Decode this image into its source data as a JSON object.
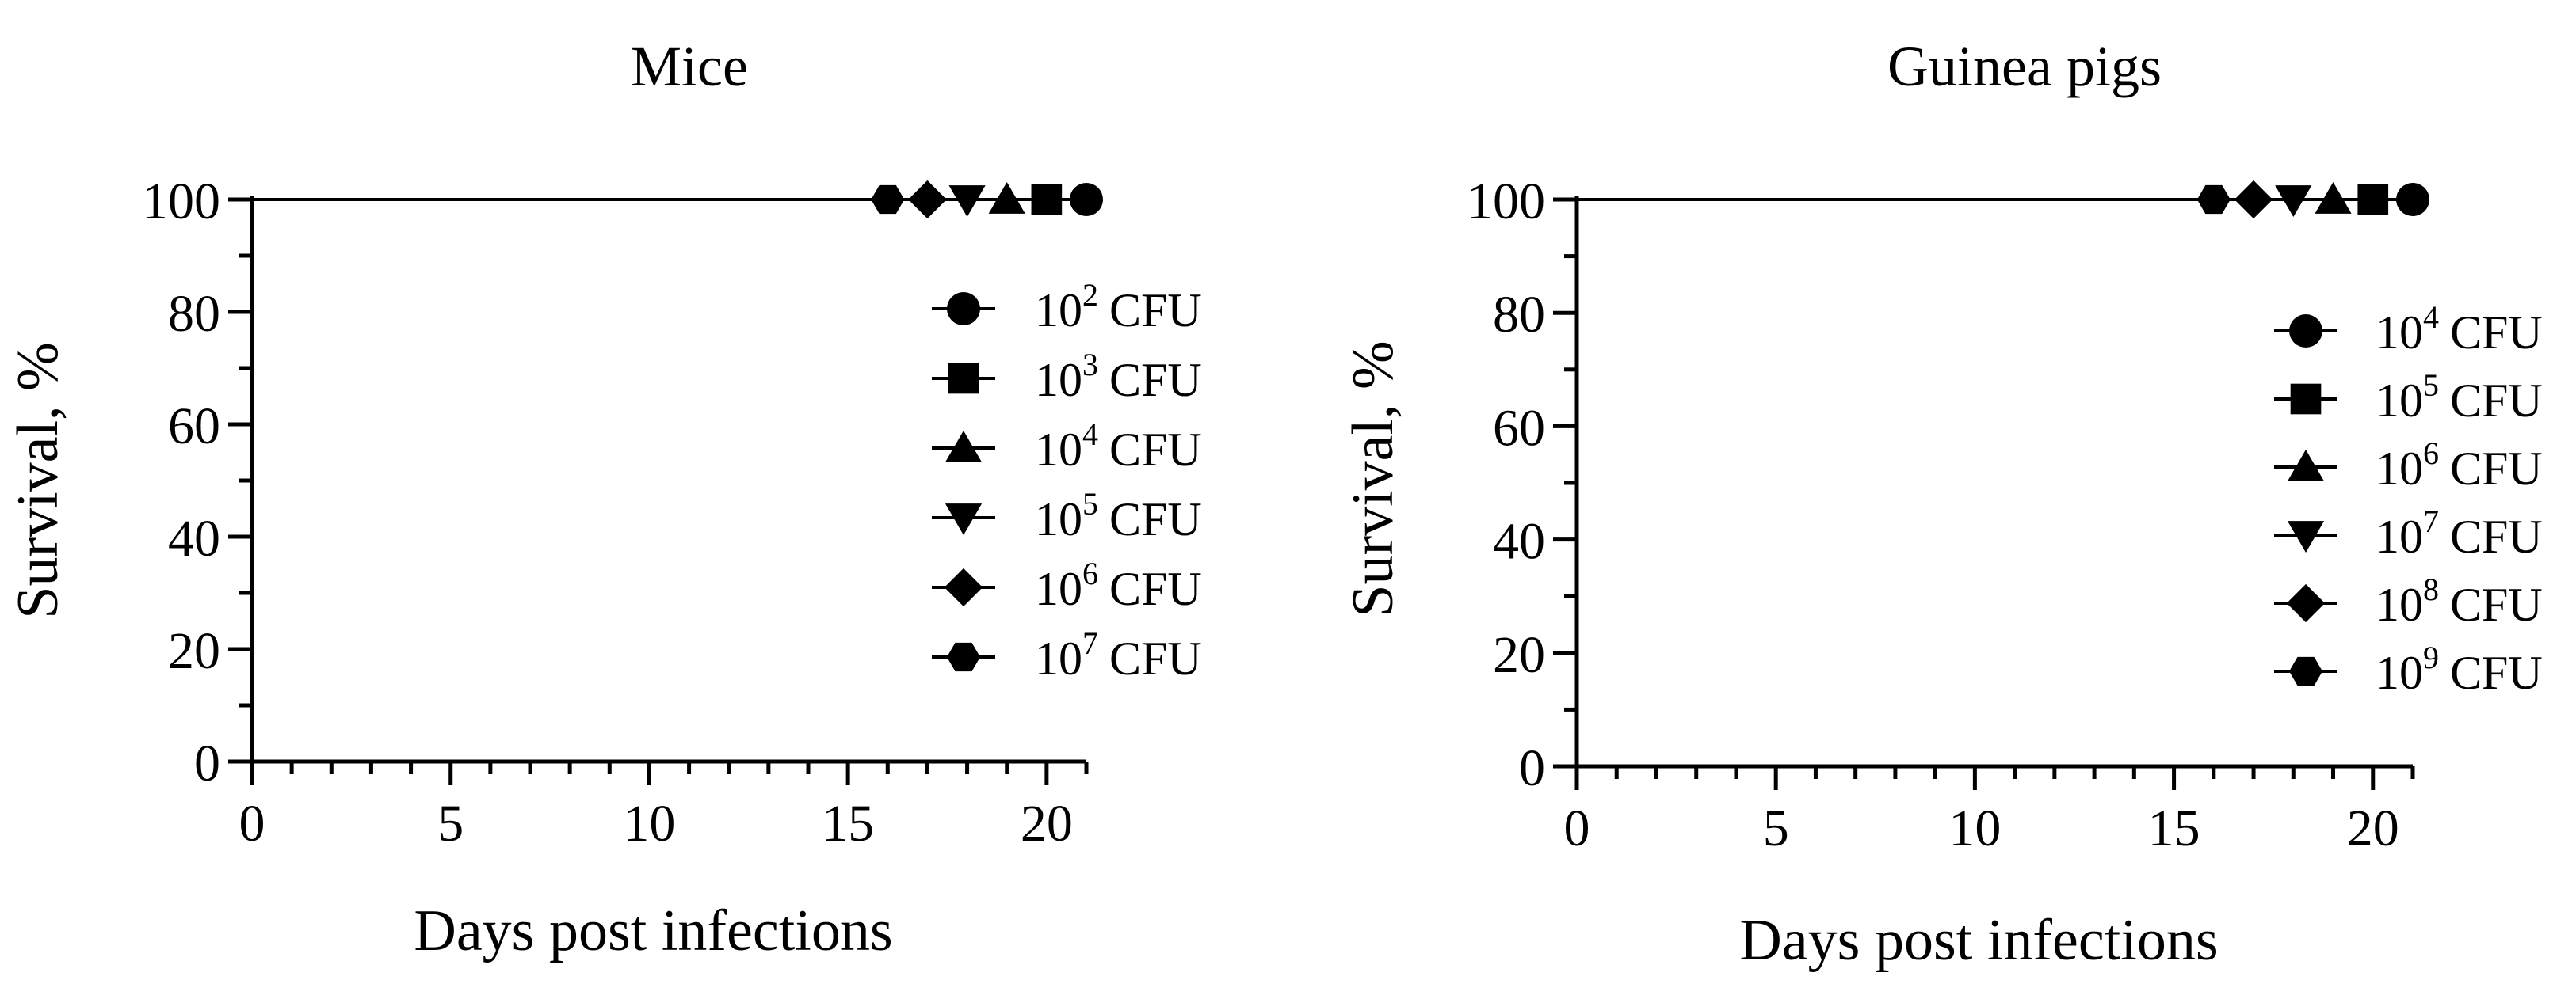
{
  "chart_data": [
    {
      "type": "line",
      "title": "Mice",
      "xlabel": "Days post infections",
      "ylabel": "Survival, %",
      "xlim": [
        0,
        21
      ],
      "ylim": [
        0,
        100
      ],
      "xticks": [
        0,
        5,
        10,
        15,
        20
      ],
      "yticks": [
        0,
        20,
        40,
        60,
        80,
        100
      ],
      "grid": false,
      "legend_position": "right",
      "series": [
        {
          "name": "10^2 CFU",
          "label_base": "10",
          "label_exp": "2",
          "label_unit": "CFU",
          "marker": "circle",
          "x": [
            0,
            21
          ],
          "y": [
            100,
            100
          ],
          "marker_at": [
            21,
            100
          ]
        },
        {
          "name": "10^3 CFU",
          "label_base": "10",
          "label_exp": "3",
          "label_unit": "CFU",
          "marker": "square",
          "x": [
            0,
            20
          ],
          "y": [
            100,
            100
          ],
          "marker_at": [
            20,
            100
          ]
        },
        {
          "name": "10^4 CFU",
          "label_base": "10",
          "label_exp": "4",
          "label_unit": "CFU",
          "marker": "triangle-up",
          "x": [
            0,
            19
          ],
          "y": [
            100,
            100
          ],
          "marker_at": [
            19,
            100
          ]
        },
        {
          "name": "10^5 CFU",
          "label_base": "10",
          "label_exp": "5",
          "label_unit": "CFU",
          "marker": "triangle-down",
          "x": [
            0,
            18
          ],
          "y": [
            100,
            100
          ],
          "marker_at": [
            18,
            100
          ]
        },
        {
          "name": "10^6 CFU",
          "label_base": "10",
          "label_exp": "6",
          "label_unit": "CFU",
          "marker": "diamond",
          "x": [
            0,
            17
          ],
          "y": [
            100,
            100
          ],
          "marker_at": [
            17,
            100
          ]
        },
        {
          "name": "10^7 CFU",
          "label_base": "10",
          "label_exp": "7",
          "label_unit": "CFU",
          "marker": "hexagon",
          "x": [
            0,
            16
          ],
          "y": [
            100,
            100
          ],
          "marker_at": [
            16,
            100
          ]
        }
      ]
    },
    {
      "type": "line",
      "title": "Guinea pigs",
      "xlabel": "Days post infections",
      "ylabel": "Survival, %",
      "xlim": [
        0,
        21
      ],
      "ylim": [
        0,
        100
      ],
      "xticks": [
        0,
        5,
        10,
        15,
        20
      ],
      "yticks": [
        0,
        20,
        40,
        60,
        80,
        100
      ],
      "grid": false,
      "legend_position": "right",
      "series": [
        {
          "name": "10^4 CFU",
          "label_base": "10",
          "label_exp": "4",
          "label_unit": "CFU",
          "marker": "circle",
          "x": [
            0,
            21
          ],
          "y": [
            100,
            100
          ],
          "marker_at": [
            21,
            100
          ]
        },
        {
          "name": "10^5 CFU",
          "label_base": "10",
          "label_exp": "5",
          "label_unit": "CFU",
          "marker": "square",
          "x": [
            0,
            20
          ],
          "y": [
            100,
            100
          ],
          "marker_at": [
            20,
            100
          ]
        },
        {
          "name": "10^6 CFU",
          "label_base": "10",
          "label_exp": "6",
          "label_unit": "CFU",
          "marker": "triangle-up",
          "x": [
            0,
            19
          ],
          "y": [
            100,
            100
          ],
          "marker_at": [
            19,
            100
          ]
        },
        {
          "name": "10^7 CFU",
          "label_base": "10",
          "label_exp": "7",
          "label_unit": "CFU",
          "marker": "triangle-down",
          "x": [
            0,
            18
          ],
          "y": [
            100,
            100
          ],
          "marker_at": [
            18,
            100
          ]
        },
        {
          "name": "10^8 CFU",
          "label_base": "10",
          "label_exp": "8",
          "label_unit": "CFU",
          "marker": "diamond",
          "x": [
            0,
            17
          ],
          "y": [
            100,
            100
          ],
          "marker_at": [
            17,
            100
          ]
        },
        {
          "name": "10^9 CFU",
          "label_base": "10",
          "label_exp": "9",
          "label_unit": "CFU",
          "marker": "hexagon",
          "x": [
            0,
            16
          ],
          "y": [
            100,
            100
          ],
          "marker_at": [
            16,
            100
          ]
        }
      ]
    }
  ]
}
